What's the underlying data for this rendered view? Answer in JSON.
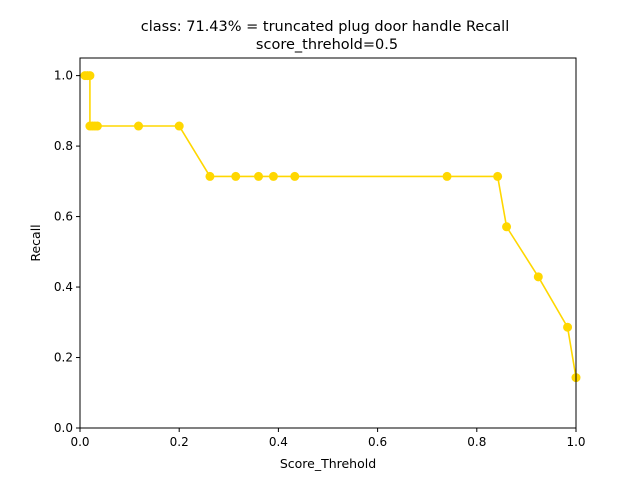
{
  "chart_data": {
    "type": "line",
    "title": "class: 71.43% = truncated plug door handle Recall",
    "subtitle": "score_threhold=0.5",
    "xlabel": "Score_Threhold",
    "ylabel": "Recall",
    "xlim": [
      0.0,
      1.0
    ],
    "ylim": [
      0.0,
      1.05
    ],
    "xticks": [
      "0.0",
      "0.2",
      "0.4",
      "0.6",
      "0.8",
      "1.0"
    ],
    "yticks": [
      "0.0",
      "0.2",
      "0.4",
      "0.6",
      "0.8",
      "1.0"
    ],
    "grid": false,
    "legend": false,
    "series": [
      {
        "color": "#FFD700",
        "marker": "circle",
        "x": [
          0.01,
          0.015,
          0.02,
          0.02,
          0.025,
          0.03,
          0.035,
          0.118,
          0.2,
          0.262,
          0.314,
          0.36,
          0.39,
          0.433,
          0.74,
          0.842,
          0.86,
          0.924,
          0.983,
          1.0
        ],
        "y": [
          1.0,
          1.0,
          1.0,
          0.857,
          0.857,
          0.857,
          0.857,
          0.857,
          0.857,
          0.714,
          0.714,
          0.714,
          0.714,
          0.714,
          0.714,
          0.714,
          0.571,
          0.429,
          0.286,
          0.143
        ]
      }
    ]
  }
}
